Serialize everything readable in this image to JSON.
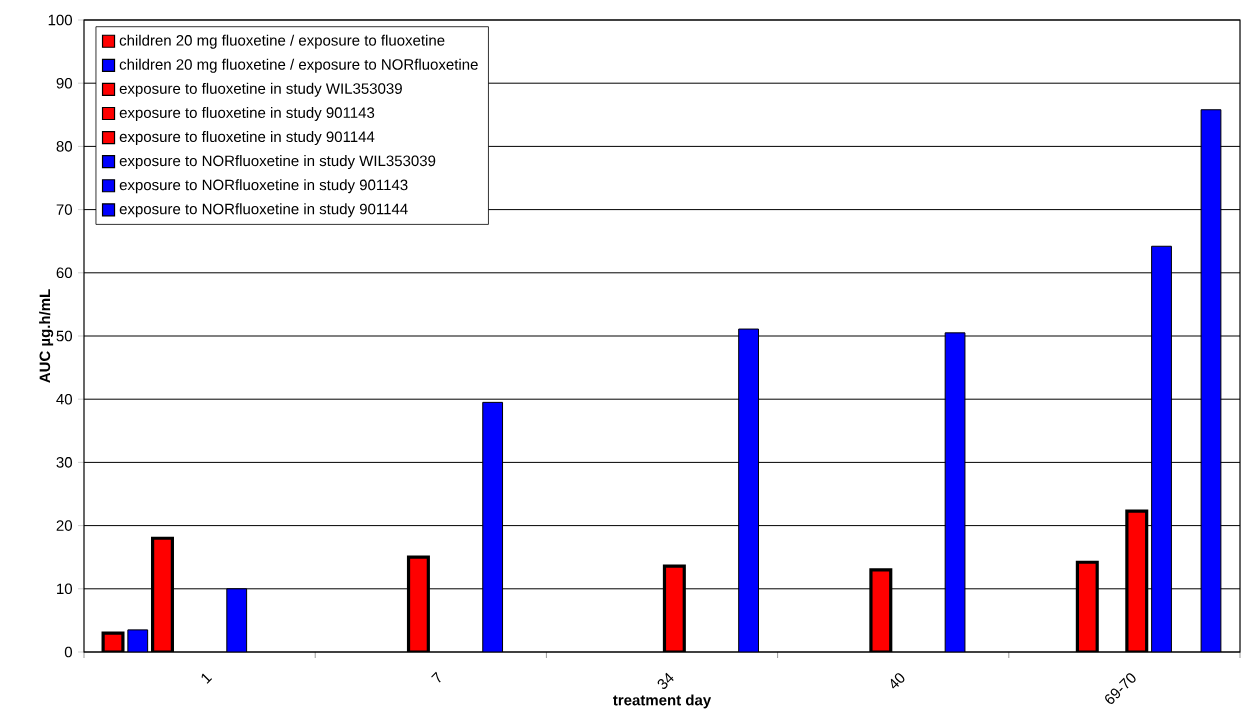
{
  "chart_data": {
    "type": "bar",
    "xlabel": "treatment day",
    "ylabel": "AUC µg.h/mL",
    "categories": [
      "1",
      "7",
      "34",
      "40",
      "69-70"
    ],
    "series": [
      {
        "name": "children 20 mg fluoxetine / exposure to fluoxetine",
        "color": "#ff0000",
        "values": [
          3,
          null,
          null,
          null,
          null
        ]
      },
      {
        "name": "children 20 mg fluoxetine / exposure to NORfluoxetine",
        "color": "#0000ff",
        "values": [
          3.5,
          null,
          null,
          null,
          null
        ]
      },
      {
        "name": "exposure to fluoxetine in study WIL353039",
        "color": "#ff0000",
        "values": [
          18,
          null,
          null,
          null,
          14.2
        ]
      },
      {
        "name": "exposure to fluoxetine in study 901143",
        "color": "#ff0000",
        "values": [
          null,
          15,
          null,
          13,
          null
        ]
      },
      {
        "name": "exposure to fluoxetine in study 901144",
        "color": "#ff0000",
        "values": [
          null,
          null,
          13.6,
          null,
          22.3
        ]
      },
      {
        "name": "exposure to NORfluoxetine in study WIL353039",
        "color": "#0000ff",
        "values": [
          10,
          null,
          null,
          null,
          64.2
        ]
      },
      {
        "name": "exposure to NORfluoxetine in study 901143",
        "color": "#0000ff",
        "values": [
          null,
          39.5,
          null,
          50.5,
          null
        ]
      },
      {
        "name": "exposure to NORfluoxetine in study 901144",
        "color": "#0000ff",
        "values": [
          null,
          null,
          51.1,
          null,
          85.8
        ]
      }
    ],
    "ylim": [
      0,
      100
    ],
    "yticks": [
      0,
      10,
      20,
      30,
      40,
      50,
      60,
      70,
      80,
      90,
      100
    ],
    "grid": "y",
    "legend": "top left"
  }
}
